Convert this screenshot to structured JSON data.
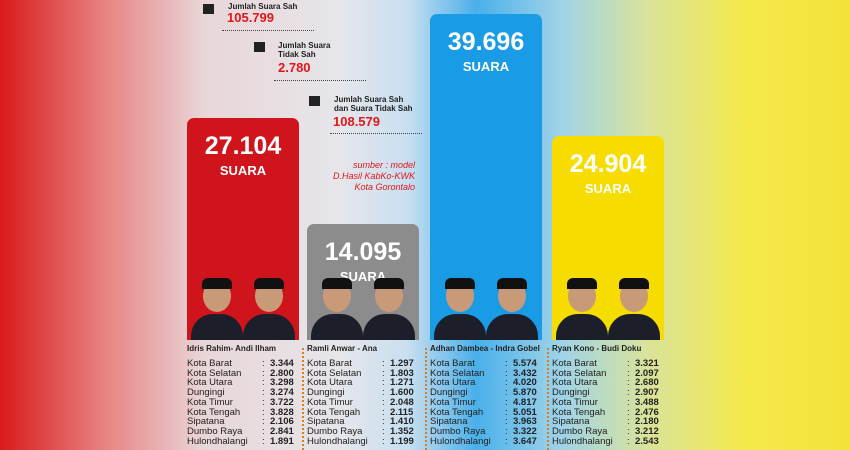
{
  "summary": {
    "valid": {
      "label": "Jumlah Suara Sah",
      "value": "105.799"
    },
    "invalid": {
      "label_line1": "Jumlah Suara",
      "label_line2": "Tidak Sah",
      "value": "2.780"
    },
    "total": {
      "label_line1": "Jumlah Suara Sah",
      "label_line2": "dan Suara Tidak Sah",
      "value": "108.579"
    }
  },
  "source": {
    "line1": "sumber : model",
    "line2": "D.Hasil KabKo-KWK",
    "line3": "Kota Gorontalo"
  },
  "chart_data": {
    "type": "bar",
    "categories": [
      "Idris Rahim- Andi Ilham",
      "Ramli Anwar - Ana",
      "Adhan Dambea - Indra Gobel",
      "Ryan Kono - Budi Doku"
    ],
    "values": [
      27104,
      14095,
      39696,
      24904
    ],
    "value_labels": [
      "27.104",
      "14.095",
      "39.696",
      "24.904"
    ],
    "unit": "SUARA",
    "colors": [
      "#d0141c",
      "#8c8c8c",
      "#1a9be6",
      "#f7dc00"
    ],
    "districts": [
      "Kota Barat",
      "Kota Selatan",
      "Kota Utara",
      "Dungingi",
      "Kota Timur",
      "Kota Tengah",
      "Sipatana",
      "Dumbo Raya",
      "Hulondhalangi"
    ],
    "district_values": [
      [
        "3.344",
        "2.800",
        "3.298",
        "3.274",
        "3.722",
        "3.828",
        "2.106",
        "2.841",
        "1.891"
      ],
      [
        "1.297",
        "1.803",
        "1.271",
        "1.600",
        "2.048",
        "2.115",
        "1.410",
        "1.352",
        "1.199"
      ],
      [
        "5.574",
        "3.432",
        "4.020",
        "5.870",
        "4.817",
        "5.051",
        "3.963",
        "3.322",
        "3.647"
      ],
      [
        "3.321",
        "2.097",
        "2.680",
        "2.907",
        "3.488",
        "2.476",
        "2.180",
        "3.212",
        "2.543"
      ]
    ]
  }
}
